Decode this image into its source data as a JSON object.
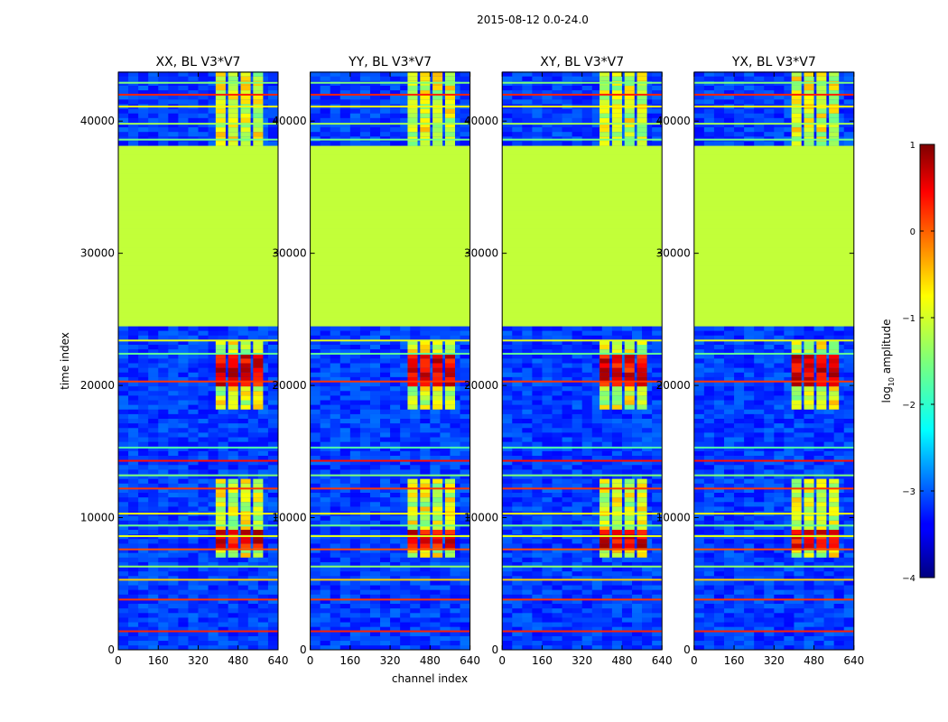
{
  "chart_data": {
    "type": "heatmap",
    "suptitle": "2015-08-12 0.0-24.0",
    "xlabel": "channel index",
    "ylabel": "time index",
    "xlim": [
      0,
      640
    ],
    "ylim": [
      0,
      43700
    ],
    "xticks": [
      0,
      160,
      320,
      480,
      640
    ],
    "yticks": [
      0,
      10000,
      20000,
      30000,
      40000
    ],
    "panels": [
      {
        "title": "XX, BL V3*V7",
        "pol": "XX"
      },
      {
        "title": "YY, BL V3*V7",
        "pol": "YY"
      },
      {
        "title": "XY, BL V3*V7",
        "pol": "XY"
      },
      {
        "title": "YX, BL V3*V7",
        "pol": "YX"
      }
    ],
    "colorbar": {
      "label_main": "log",
      "label_sub": "10",
      "label_tail": " amplitude",
      "range": [
        -4,
        1
      ],
      "ticks": [
        1,
        0,
        -1,
        -2,
        -3,
        -4
      ],
      "tick_labels": [
        "1",
        "0",
        "−1",
        "−2",
        "−3",
        "−4"
      ]
    },
    "bands": {
      "flagged_time_ranges": [
        [
          24200,
          35100
        ],
        [
          35300,
          37800
        ]
      ],
      "flagged_value": -1.1,
      "rfi_channels": [
        {
          "start": 390,
          "end": 430
        },
        {
          "start": 440,
          "end": 480
        },
        {
          "start": 490,
          "end": 530
        },
        {
          "start": 540,
          "end": 580
        }
      ],
      "rfi_time_ranges": [
        [
          6800,
          12600
        ],
        [
          18000,
          23300
        ],
        [
          37900,
          43700
        ]
      ],
      "hot_time_ranges": [
        [
          7700,
          9000
        ],
        [
          19800,
          22200
        ]
      ],
      "horizontal_lines": [
        {
          "t": 1400,
          "v": 0.3
        },
        {
          "t": 3800,
          "v": 0.2
        },
        {
          "t": 5300,
          "v": -0.5
        },
        {
          "t": 6300,
          "v": -1.4
        },
        {
          "t": 7600,
          "v": 0.1
        },
        {
          "t": 8600,
          "v": -0.9
        },
        {
          "t": 9400,
          "v": -1.6
        },
        {
          "t": 10300,
          "v": -0.8
        },
        {
          "t": 12200,
          "v": 0.2
        },
        {
          "t": 13200,
          "v": -1.5
        },
        {
          "t": 14300,
          "v": 0.4
        },
        {
          "t": 15300,
          "v": -1.8
        },
        {
          "t": 20300,
          "v": 0.2
        },
        {
          "t": 22400,
          "v": -1.7
        },
        {
          "t": 23400,
          "v": -0.9
        },
        {
          "t": 38600,
          "v": -1.6
        },
        {
          "t": 39800,
          "v": -1.3
        },
        {
          "t": 41100,
          "v": -0.7
        },
        {
          "t": 42000,
          "v": 0.3
        },
        {
          "t": 42900,
          "v": -1.5
        }
      ]
    }
  }
}
